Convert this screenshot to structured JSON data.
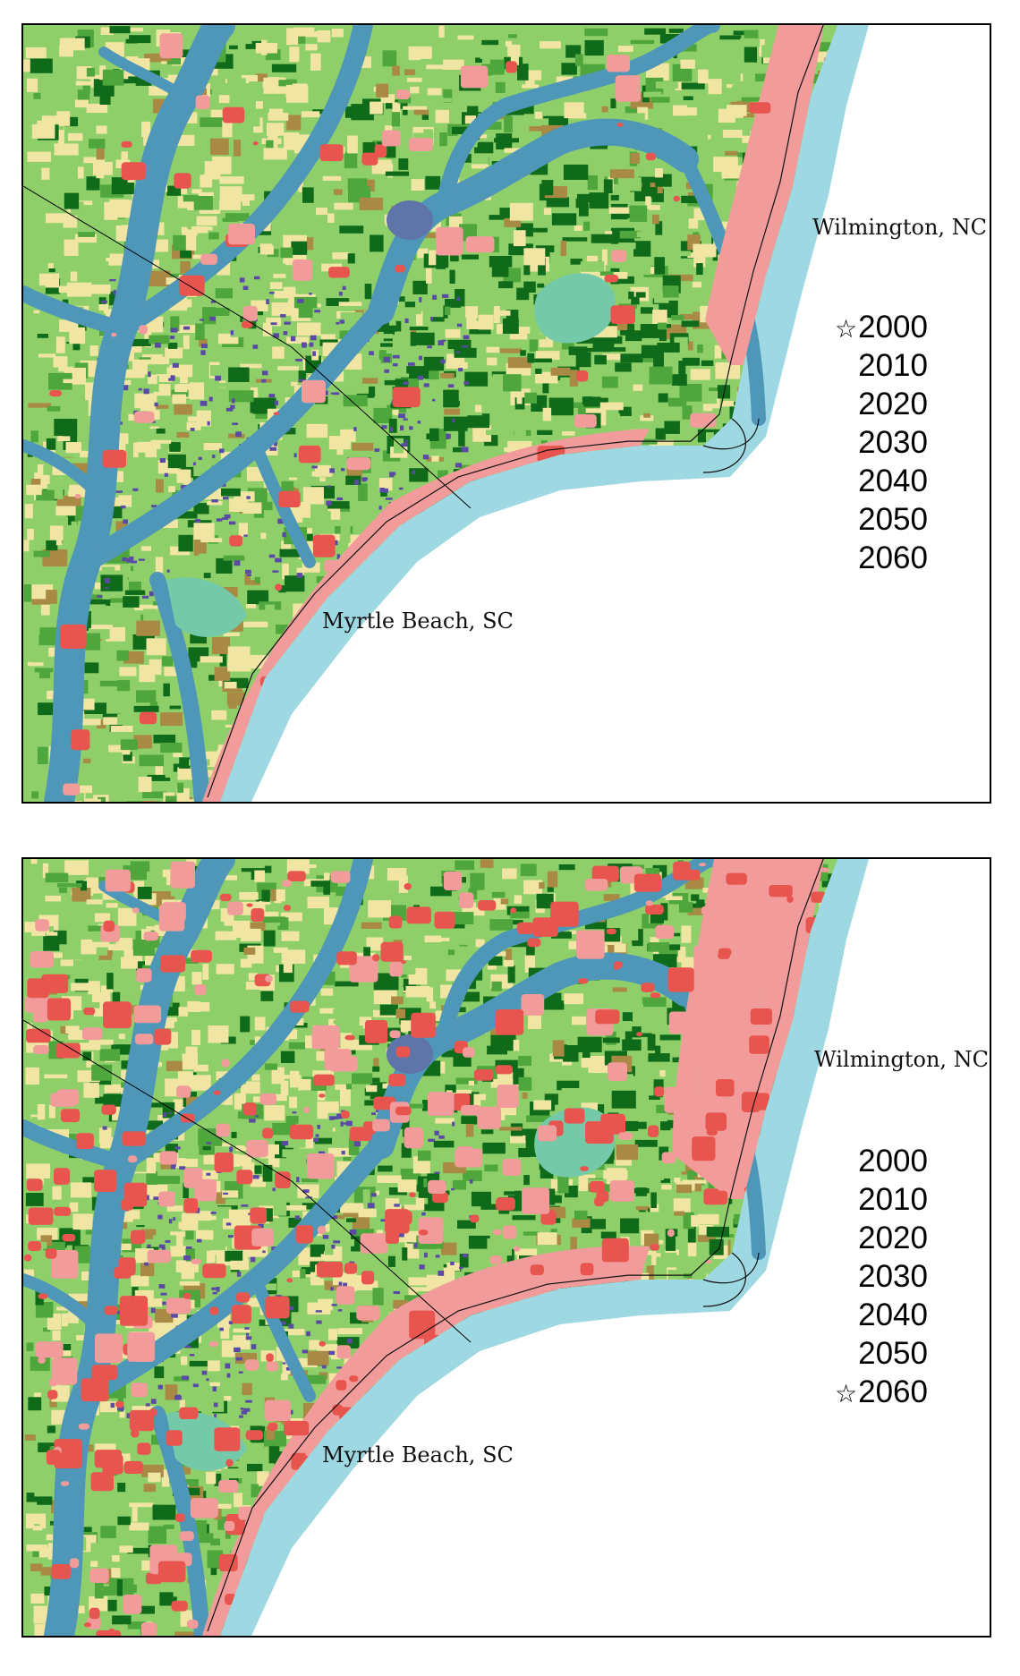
{
  "colors": {
    "ocean_shelf": "#9ed8e2",
    "estuary": "#4f97b8",
    "lake": "#5f74a8",
    "marsh": "#74c9a8",
    "crop": "#f0e5a3",
    "grass": "#8fcf6a",
    "forest": "#4ea63c",
    "dense_forest": "#0f6a1a",
    "shrub": "#a88a45",
    "urban_low": "#f19c9a",
    "urban_high": "#e8554f",
    "wetland_purple": "#5a4aa5"
  },
  "maps": [
    {
      "selected_year": "2000",
      "labels": {
        "wilmington": "Wilmington, NC",
        "myrtle_beach": "Myrtle Beach, SC"
      },
      "years": [
        "2000",
        "2010",
        "2020",
        "2030",
        "2040",
        "2050",
        "2060"
      ],
      "urban_level": 0.1
    },
    {
      "selected_year": "2060",
      "labels": {
        "wilmington": "Wilmington, NC",
        "myrtle_beach": "Myrtle Beach, SC"
      },
      "years": [
        "2000",
        "2010",
        "2020",
        "2030",
        "2040",
        "2050",
        "2060"
      ],
      "urban_level": 0.55
    }
  ],
  "star_symbol": "☆"
}
